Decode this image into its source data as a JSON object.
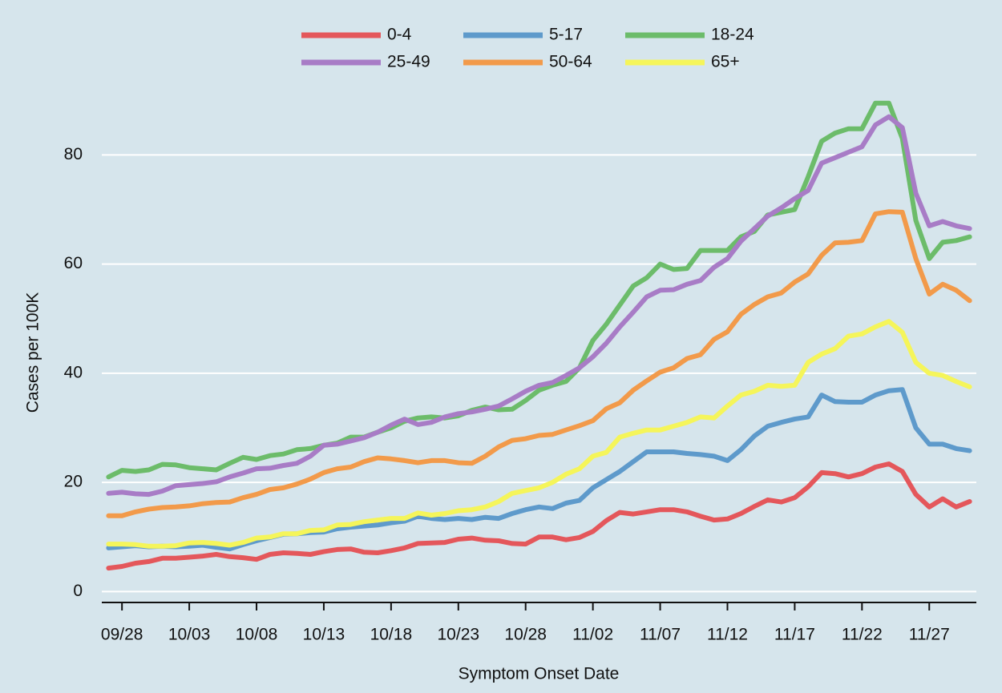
{
  "chart_data": {
    "type": "line",
    "x_label": "Symptom Onset Date",
    "y_label": "Cases per 100K",
    "categories": [
      null,
      "09/28",
      null,
      null,
      null,
      null,
      "10/03",
      null,
      null,
      null,
      null,
      "10/08",
      null,
      null,
      null,
      null,
      "10/13",
      null,
      null,
      null,
      null,
      "10/18",
      null,
      null,
      null,
      null,
      "10/23",
      null,
      null,
      null,
      null,
      "10/28",
      null,
      null,
      null,
      null,
      "11/02",
      null,
      null,
      null,
      null,
      "11/07",
      null,
      null,
      null,
      null,
      "11/12",
      null,
      null,
      null,
      null,
      "11/17",
      null,
      null,
      null,
      null,
      "11/22",
      null,
      null,
      null,
      null,
      "11/27",
      null,
      null,
      null
    ],
    "ylim": [
      -2,
      94
    ],
    "yticks": [
      0,
      20,
      40,
      60,
      80
    ],
    "grid": true,
    "legend": "top",
    "series": [
      {
        "name": "0-4",
        "color": "#e4575b",
        "values": [
          4.3,
          4.6,
          5.2,
          5.5,
          6.1,
          6.1,
          6.3,
          6.5,
          6.8,
          6.4,
          6.2,
          5.9,
          6.8,
          7.1,
          7.0,
          6.8,
          7.3,
          7.7,
          7.8,
          7.2,
          7.1,
          7.5,
          8.0,
          8.8,
          8.9,
          9.0,
          9.6,
          9.8,
          9.4,
          9.3,
          8.8,
          8.7,
          10.0,
          10.0,
          9.5,
          9.9,
          11.0,
          13.0,
          14.5,
          14.2,
          14.6,
          15.0,
          15.0,
          14.6,
          13.8,
          13.1,
          13.3,
          14.3,
          15.6,
          16.8,
          16.4,
          17.2,
          19.2,
          21.8,
          21.6,
          21.0,
          21.6,
          22.8,
          23.4,
          22.0,
          17.8,
          15.5,
          17.0,
          15.5,
          16.5
        ]
      },
      {
        "name": "5-17",
        "color": "#5e9acb",
        "values": [
          8.0,
          8.2,
          8.4,
          8.2,
          8.3,
          8.2,
          8.3,
          8.5,
          8.1,
          7.8,
          8.6,
          9.3,
          9.9,
          10.5,
          10.6,
          10.8,
          10.9,
          11.5,
          11.8,
          12.0,
          12.2,
          12.6,
          12.9,
          13.8,
          13.4,
          13.2,
          13.4,
          13.2,
          13.6,
          13.4,
          14.3,
          15.0,
          15.5,
          15.2,
          16.2,
          16.7,
          19.0,
          20.5,
          22.0,
          23.8,
          25.6,
          25.6,
          25.6,
          25.3,
          25.1,
          24.8,
          24.0,
          26.0,
          28.5,
          30.3,
          31.0,
          31.6,
          32.0,
          36.0,
          34.8,
          34.7,
          34.7,
          36.0,
          36.8,
          37.0,
          30.0,
          27.0,
          27.0,
          26.2,
          25.8
        ]
      },
      {
        "name": "18-24",
        "color": "#6cbc6a",
        "values": [
          21.0,
          22.2,
          22.0,
          22.3,
          23.3,
          23.2,
          22.7,
          22.5,
          22.3,
          23.5,
          24.6,
          24.2,
          24.9,
          25.2,
          26.0,
          26.2,
          26.8,
          27.2,
          28.3,
          28.3,
          29.2,
          30.0,
          31.2,
          31.8,
          32.0,
          31.8,
          32.2,
          33.2,
          33.8,
          33.3,
          33.4,
          35.0,
          36.9,
          37.8,
          38.5,
          41.0,
          46.0,
          49.0,
          52.5,
          56.0,
          57.5,
          60.0,
          59.0,
          59.2,
          62.5,
          62.5,
          62.5,
          65.0,
          66.0,
          69.0,
          69.5,
          70.0,
          76.0,
          82.5,
          84.0,
          84.8,
          84.8,
          89.5,
          89.5,
          83.0,
          68.0,
          61.0,
          64.0,
          64.3,
          65.0
        ]
      },
      {
        "name": "25-49",
        "color": "#a87cc6",
        "values": [
          18.0,
          18.2,
          17.9,
          17.8,
          18.4,
          19.4,
          19.6,
          19.8,
          20.1,
          21.0,
          21.7,
          22.5,
          22.6,
          23.1,
          23.5,
          24.8,
          26.8,
          27.0,
          27.6,
          28.2,
          29.2,
          30.5,
          31.6,
          30.6,
          31.0,
          32.0,
          32.6,
          32.9,
          33.4,
          34.0,
          35.3,
          36.7,
          37.8,
          38.3,
          39.6,
          41.0,
          43.0,
          45.5,
          48.5,
          51.2,
          54.0,
          55.2,
          55.3,
          56.3,
          57.0,
          59.4,
          61.0,
          64.2,
          66.5,
          68.8,
          70.3,
          72.0,
          73.5,
          78.5,
          79.5,
          80.5,
          81.5,
          85.5,
          87.0,
          85.0,
          73.0,
          67.0,
          67.8,
          67.0,
          66.5
        ]
      },
      {
        "name": "50-64",
        "color": "#f29a4a",
        "values": [
          13.9,
          13.9,
          14.6,
          15.1,
          15.4,
          15.5,
          15.7,
          16.1,
          16.3,
          16.4,
          17.2,
          17.8,
          18.7,
          19.0,
          19.7,
          20.6,
          21.8,
          22.5,
          22.8,
          23.8,
          24.5,
          24.3,
          24.0,
          23.6,
          24.0,
          24.0,
          23.6,
          23.5,
          24.8,
          26.5,
          27.7,
          28.0,
          28.6,
          28.8,
          29.6,
          30.4,
          31.3,
          33.5,
          34.6,
          36.9,
          38.6,
          40.2,
          41.0,
          42.7,
          43.4,
          46.2,
          47.6,
          50.8,
          52.6,
          54.0,
          54.7,
          56.7,
          58.2,
          61.6,
          63.9,
          64.0,
          64.3,
          69.2,
          69.6,
          69.5,
          61.0,
          54.5,
          56.3,
          55.2,
          53.3
        ]
      },
      {
        "name": "65+",
        "color": "#f5f55a",
        "values": [
          8.7,
          8.7,
          8.6,
          8.3,
          8.3,
          8.4,
          8.9,
          9.0,
          8.8,
          8.5,
          9.0,
          9.8,
          10.0,
          10.6,
          10.6,
          11.2,
          11.3,
          12.2,
          12.3,
          12.8,
          13.1,
          13.4,
          13.4,
          14.4,
          14.0,
          14.3,
          14.8,
          15.0,
          15.5,
          16.5,
          18.0,
          18.5,
          19.0,
          20.0,
          21.5,
          22.5,
          24.8,
          25.5,
          28.3,
          29.0,
          29.6,
          29.6,
          30.3,
          31.0,
          32.0,
          31.8,
          34.0,
          36.0,
          36.7,
          37.8,
          37.6,
          37.8,
          42.0,
          43.5,
          44.5,
          46.8,
          47.2,
          48.5,
          49.5,
          47.5,
          42.0,
          40.0,
          39.6,
          38.5,
          37.5
        ]
      }
    ]
  }
}
